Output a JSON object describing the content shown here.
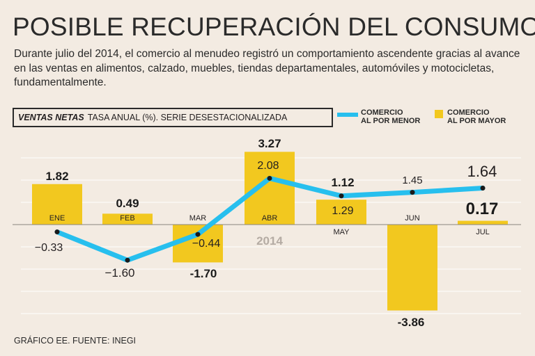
{
  "title": "POSIBLE RECUPERACIÓN DEL CONSUMO",
  "subtitle": "Durante julio del 2014, el comercio al menudeo registró un comportamiento ascendente gracias al avance en las ventas en alimentos, calzado, muebles, tiendas departamentales, automóviles y motocicletas, fundamentalmente.",
  "header": {
    "bold": "VENTAS NETAS",
    "rest": "TASA ANUAL (%). SERIE DESESTACIONALIZADA"
  },
  "legend": {
    "menor_line1": "COMERCIO",
    "menor_line2": "AL POR MENOR",
    "mayor_line1": "COMERCIO",
    "mayor_line2": "AL POR MAYOR"
  },
  "credit": "GRÁFICO EE. FUENTE: INEGI",
  "year_label": "2014",
  "colors": {
    "bar": "#f2c81f",
    "line": "#27bfee",
    "background": "#f3ebe2"
  },
  "chart_data": {
    "type": "bar",
    "title": "VENTAS NETAS",
    "categories": [
      "ENE",
      "FEB",
      "MAR",
      "ABR",
      "MAY",
      "JUN",
      "JUL"
    ],
    "series": [
      {
        "name": "COMERCIO AL POR MAYOR",
        "type": "bar",
        "values": [
          1.82,
          0.49,
          -1.7,
          3.27,
          1.12,
          -3.86,
          0.17
        ],
        "labels": [
          "1.82",
          "0.49",
          "-1.70",
          "3.27",
          "1.12",
          "-3.86",
          "0.17"
        ]
      },
      {
        "name": "COMERCIO AL POR MENOR",
        "type": "line",
        "values": [
          -0.33,
          -1.6,
          -0.44,
          2.08,
          1.29,
          1.45,
          1.64
        ],
        "labels": [
          "−0.33",
          "−1.60",
          "−0.44",
          "2.08",
          "1.29",
          "1.45",
          "1.64"
        ]
      }
    ],
    "ylim": [
      -4,
      3.4
    ]
  }
}
